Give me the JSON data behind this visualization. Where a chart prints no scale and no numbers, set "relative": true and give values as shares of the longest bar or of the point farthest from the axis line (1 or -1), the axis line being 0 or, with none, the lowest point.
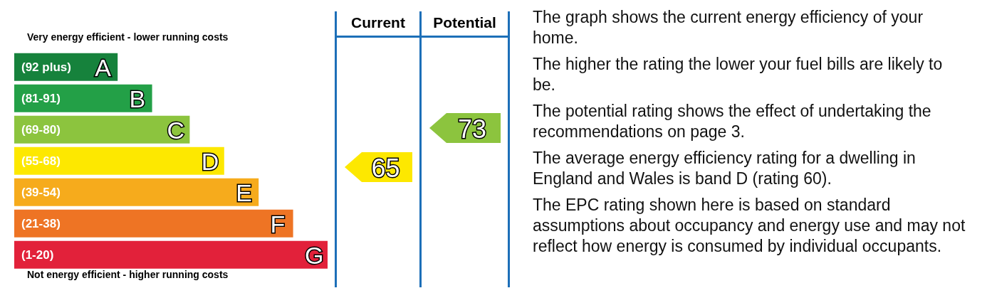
{
  "chart_data": {
    "type": "bar",
    "orientation": "horizontal",
    "relative": true,
    "categories": [
      "(92 plus) A",
      "(81-91) B",
      "(69-80) C",
      "(55-68) D",
      "(39-54) E",
      "(21-38) F",
      "(1-20) G"
    ],
    "values": [
      0.33,
      0.44,
      0.56,
      0.67,
      0.78,
      0.89,
      1
    ],
    "colors": [
      "#16823c",
      "#23a047",
      "#8cc43e",
      "#fde800",
      "#f6ab1c",
      "#ee7424",
      "#e2213a"
    ],
    "annotations": [
      "Very energy efficient - lower running costs",
      "Not energy efficient - higher running costs",
      "Current",
      "Potential",
      "65",
      "73",
      "The graph shows the current energy efficiency of your home.",
      "The higher the rating the lower your fuel bills are likely to be.",
      "The potential rating shows the effect of undertaking the recommendations on page 3.",
      "The average energy efficiency rating for a dwelling in England and Wales is band D (rating 60).",
      "The EPC rating shown here is based on standard assumptions about occupancy and energy use and may not reflect how energy is consumed by individual occupants."
    ]
  }
}
